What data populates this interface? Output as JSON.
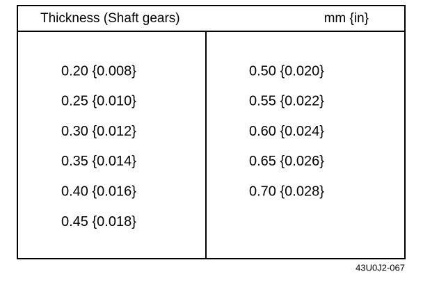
{
  "header": {
    "title": "Thickness (Shaft gears)",
    "unit": "mm {in}"
  },
  "table": {
    "columns": [
      [
        "0.20 {0.008}",
        "0.25 {0.010}",
        "0.30 {0.012}",
        "0.35 {0.014}",
        "0.40 {0.016}",
        "0.45 {0.018}"
      ],
      [
        "0.50 {0.020}",
        "0.55 {0.022}",
        "0.60 {0.024}",
        "0.65 {0.026}",
        "0.70 {0.028}"
      ]
    ]
  },
  "figure_id": "43U0J2-067"
}
